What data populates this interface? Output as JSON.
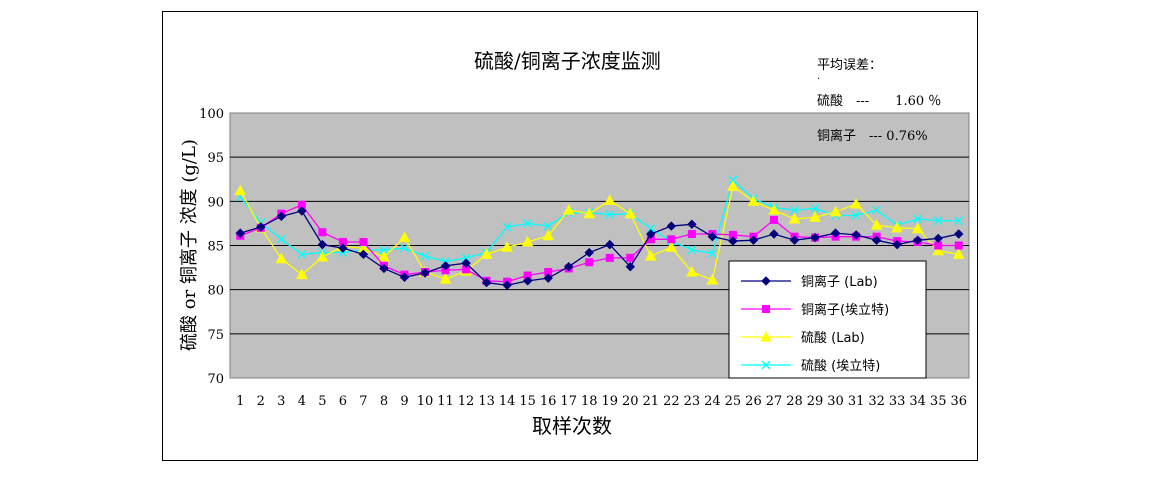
{
  "chart_data": {
    "type": "line",
    "title": "硫酸/铜离子浓度监测",
    "xlabel": "取样次数",
    "ylabel": "硫酸 or 铜离子 浓度 (g/L)",
    "ylim": [
      70,
      100
    ],
    "yticks": [
      70,
      75,
      80,
      85,
      90,
      95,
      100
    ],
    "grid": true,
    "legend_position": "bottom-right",
    "categories": [
      1,
      2,
      3,
      4,
      5,
      6,
      7,
      8,
      9,
      10,
      11,
      12,
      13,
      14,
      15,
      16,
      17,
      18,
      19,
      20,
      21,
      22,
      23,
      24,
      25,
      26,
      27,
      28,
      29,
      30,
      31,
      32,
      33,
      34,
      35,
      36
    ],
    "series": [
      {
        "name": "铜离子 (Lab)",
        "color": "#00007f",
        "marker": "diamond",
        "values": [
          86.4,
          87.1,
          88.3,
          88.9,
          85.1,
          84.7,
          84.0,
          82.4,
          81.4,
          81.9,
          82.7,
          83.0,
          80.8,
          80.5,
          81.0,
          81.3,
          82.6,
          84.2,
          85.1,
          82.6,
          86.3,
          87.2,
          87.4,
          86.0,
          85.5,
          85.6,
          86.3,
          85.6,
          85.9,
          86.4,
          86.2,
          85.6,
          85.1,
          85.6,
          85.8,
          86.3
        ]
      },
      {
        "name": "铜离子(埃立特)",
        "color": "#ff00ff",
        "marker": "square",
        "values": [
          86.1,
          87.0,
          88.6,
          89.6,
          86.5,
          85.4,
          85.4,
          82.7,
          81.7,
          82.0,
          82.2,
          82.3,
          81.0,
          80.9,
          81.6,
          82.0,
          82.4,
          83.1,
          83.6,
          83.6,
          85.7,
          85.7,
          86.3,
          86.3,
          86.2,
          86.0,
          87.9,
          86.0,
          85.9,
          86.0,
          86.0,
          86.0,
          85.5,
          85.4,
          85.0,
          85.0
        ]
      },
      {
        "name": "硫酸 (Lab)",
        "color": "#ffff00",
        "marker": "triangle",
        "values": [
          91.2,
          87.0,
          83.5,
          81.7,
          83.7,
          84.9,
          84.7,
          83.7,
          85.9,
          82.0,
          81.2,
          82.1,
          84.0,
          84.8,
          85.4,
          86.1,
          89.0,
          88.6,
          90.1,
          88.6,
          83.8,
          84.8,
          82.0,
          81.1,
          91.7,
          90.0,
          89.0,
          88.0,
          88.2,
          88.8,
          89.7,
          87.3,
          87.0,
          86.9,
          84.4,
          84.0
        ]
      },
      {
        "name": "硫酸 (埃立特)",
        "color": "#00ffff",
        "marker": "cross",
        "values": [
          90.5,
          87.6,
          85.7,
          84.0,
          84.2,
          84.2,
          84.5,
          84.5,
          84.7,
          83.8,
          83.2,
          83.6,
          84.2,
          87.1,
          87.5,
          87.2,
          88.7,
          88.7,
          88.5,
          88.6,
          86.9,
          85.5,
          84.5,
          84.1,
          92.4,
          90.3,
          89.3,
          89.0,
          89.2,
          88.4,
          88.4,
          89.0,
          87.3,
          88.0,
          87.8,
          87.8
        ]
      }
    ]
  },
  "title": "硫酸/铜离子浓度监测",
  "xlabel": "取样次数",
  "ylabel": "硫酸 or 铜离子 浓度 (g/L)",
  "avg_error": {
    "label": "平均误差：",
    "dot": "·",
    "acid": "硫酸　---　　1.60 ％",
    "copper": "铜离子　--- 0.76%"
  }
}
